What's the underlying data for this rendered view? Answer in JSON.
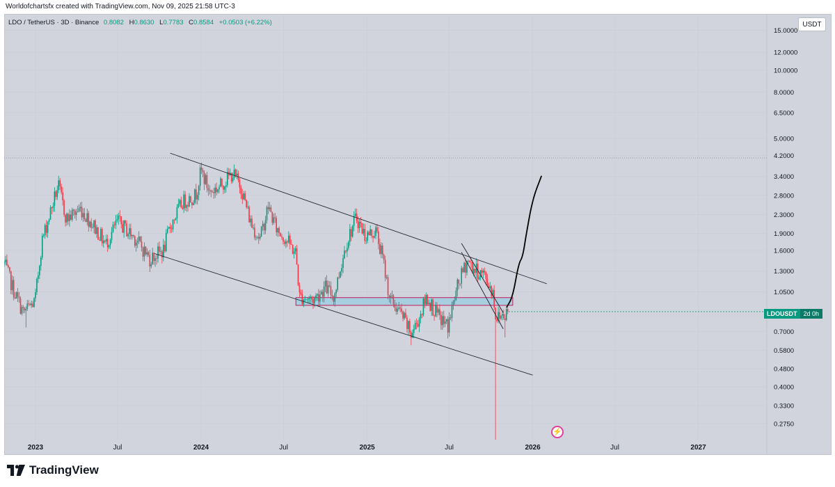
{
  "header": {
    "attribution": "Worldofchartsfx created with TradingView.com, Nov 09, 2025 21:58 UTC-3"
  },
  "legend": {
    "symbol": "LDO / TetherUS · 3D · Binance",
    "o_label": "O",
    "o_value": "0.8082",
    "h_label": "H",
    "h_value": "0.8630",
    "l_label": "L",
    "l_value": "0.7783",
    "c_label": "C",
    "c_value": "0.8584",
    "change": "+0.0503 (+6.22%)"
  },
  "currency_button": "USDT",
  "price_badge": {
    "symbol": "LDOUSDT",
    "countdown": "2d 0h"
  },
  "brand": {
    "name": "TradingView",
    "logo_icon": "tradingview-logo-icon"
  },
  "colors": {
    "background": "#d1d4dc",
    "up": "#089981",
    "down": "#f23645",
    "zone_fill": "#a8cfe0",
    "zone_border": "#c2185b",
    "line": "#2a2e39",
    "dotted": "#9598a1"
  },
  "chart_data": {
    "type": "candlestick",
    "y_scale": "log",
    "xlim": [
      "2022-10-24",
      "2027-06-01"
    ],
    "ylim": [
      0.24,
      17.0
    ],
    "x_ticks": [
      {
        "label": "2023",
        "date": "2023-01-01"
      },
      {
        "label": "Jul",
        "date": "2023-07-01"
      },
      {
        "label": "2024",
        "date": "2024-01-01"
      },
      {
        "label": "Jul",
        "date": "2024-07-01"
      },
      {
        "label": "2025",
        "date": "2025-01-01"
      },
      {
        "label": "Jul",
        "date": "2025-07-01"
      },
      {
        "label": "2026",
        "date": "2026-01-01"
      },
      {
        "label": "Jul",
        "date": "2026-07-01"
      },
      {
        "label": "2027",
        "date": "2027-01-01"
      }
    ],
    "y_ticks": [
      "15.0000",
      "12.0000",
      "10.0000",
      "8.0000",
      "6.5000",
      "5.0000",
      "4.2000",
      "3.4000",
      "2.8000",
      "2.3000",
      "1.9000",
      "1.6000",
      "1.3000",
      "1.0500",
      "0.7000",
      "0.5800",
      "0.4800",
      "0.4000",
      "0.3300",
      "0.2750"
    ],
    "last_close": 0.8584,
    "price_path": [
      [
        "2022-10-24",
        1.4
      ],
      [
        "2022-11-15",
        1.05
      ],
      [
        "2022-12-05",
        0.85
      ],
      [
        "2022-12-31",
        0.95
      ],
      [
        "2023-01-15",
        1.75
      ],
      [
        "2023-02-05",
        2.45
      ],
      [
        "2023-02-20",
        3.1
      ],
      [
        "2023-03-10",
        2.2
      ],
      [
        "2023-04-10",
        2.45
      ],
      [
        "2023-05-10",
        2.05
      ],
      [
        "2023-06-05",
        1.7
      ],
      [
        "2023-07-01",
        2.15
      ],
      [
        "2023-08-10",
        1.8
      ],
      [
        "2023-09-10",
        1.47
      ],
      [
        "2023-10-10",
        1.6
      ],
      [
        "2023-10-25",
        2.05
      ],
      [
        "2023-11-20",
        2.6
      ],
      [
        "2023-12-20",
        2.8
      ],
      [
        "2024-01-01",
        3.6
      ],
      [
        "2024-01-20",
        2.9
      ],
      [
        "2024-02-10",
        3.05
      ],
      [
        "2024-03-10",
        3.5
      ],
      [
        "2024-03-28",
        3.1
      ],
      [
        "2024-04-20",
        2.1
      ],
      [
        "2024-05-10",
        1.8
      ],
      [
        "2024-05-28",
        2.5
      ],
      [
        "2024-06-15",
        2.0
      ],
      [
        "2024-07-10",
        1.75
      ],
      [
        "2024-07-28",
        1.55
      ],
      [
        "2024-08-05",
        1.0
      ],
      [
        "2024-09-05",
        0.97
      ],
      [
        "2024-10-01",
        1.1
      ],
      [
        "2024-10-20",
        1.0
      ],
      [
        "2024-11-15",
        1.7
      ],
      [
        "2024-12-08",
        2.25
      ],
      [
        "2024-12-28",
        1.85
      ],
      [
        "2025-01-20",
        1.95
      ],
      [
        "2025-02-05",
        1.45
      ],
      [
        "2025-02-20",
        0.98
      ],
      [
        "2025-03-20",
        0.82
      ],
      [
        "2025-04-08",
        0.68
      ],
      [
        "2025-04-25",
        0.8
      ],
      [
        "2025-05-12",
        1.0
      ],
      [
        "2025-06-05",
        0.82
      ],
      [
        "2025-06-28",
        0.74
      ],
      [
        "2025-07-20",
        1.12
      ],
      [
        "2025-08-10",
        1.45
      ],
      [
        "2025-08-28",
        1.3
      ],
      [
        "2025-09-15",
        1.25
      ],
      [
        "2025-10-05",
        1.05
      ],
      [
        "2025-10-12",
        0.8
      ],
      [
        "2025-10-28",
        0.84
      ],
      [
        "2025-11-09",
        0.8584
      ]
    ],
    "wicks": [
      {
        "date": "2022-12-10",
        "low": 0.73
      },
      {
        "date": "2024-12-10",
        "high": 2.45
      },
      {
        "date": "2025-04-07",
        "low": 0.61
      },
      {
        "date": "2025-10-10",
        "low": 0.15
      },
      {
        "date": "2025-10-31",
        "low": 0.66
      }
    ],
    "annotations": {
      "channel_upper": [
        [
          "2023-10-25",
          4.3
        ],
        [
          "2026-02-01",
          1.14
        ]
      ],
      "channel_lower": [
        [
          "2023-09-20",
          1.55
        ],
        [
          "2026-01-01",
          0.45
        ]
      ],
      "wedge_upper": [
        [
          "2025-07-28",
          1.72
        ],
        [
          "2025-10-28",
          0.85
        ]
      ],
      "wedge_lower": [
        [
          "2025-07-28",
          1.57
        ],
        [
          "2025-10-28",
          0.72
        ]
      ],
      "support_zone": {
        "from": "2024-07-28",
        "to": "2025-11-18",
        "low": 0.915,
        "high": 0.99
      },
      "dotted_level": 4.1,
      "projection": [
        [
          "2025-11-05",
          0.9
        ],
        [
          "2025-11-18",
          1.0
        ],
        [
          "2025-12-01",
          1.4
        ],
        [
          "2025-12-10",
          1.5
        ],
        [
          "2025-12-18",
          1.9
        ],
        [
          "2026-01-01",
          2.7
        ],
        [
          "2026-01-20",
          3.4
        ]
      ]
    }
  }
}
